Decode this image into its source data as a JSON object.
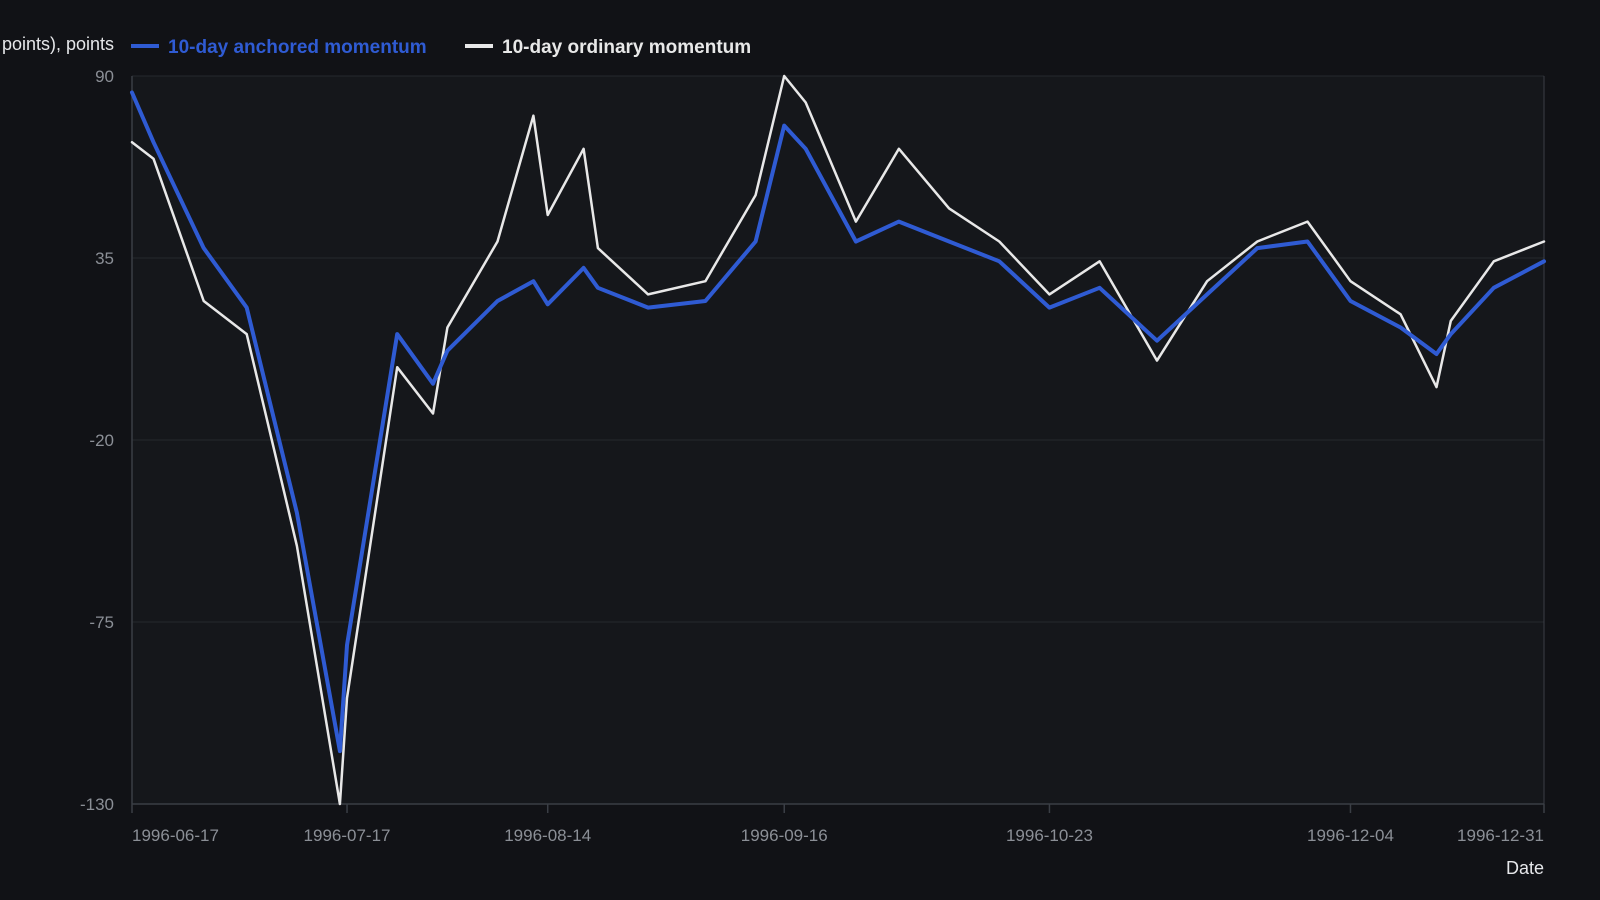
{
  "colors": {
    "background": "#111216",
    "plot_background": "#15171b",
    "grid": "#25282e",
    "axis": "#3a3e45",
    "tick_text": "#8b8f96",
    "label_text": "#e6e7ea",
    "series_anchored": "#2f5bd3",
    "series_ordinary": "#e8e8e8"
  },
  "chart_data": {
    "type": "line",
    "ylabel": "points), points",
    "xlabel": "Date",
    "legend_position": "top-left",
    "grid": true,
    "ylim": [
      -130,
      90
    ],
    "yticks": [
      90,
      35,
      -20,
      -75,
      -130
    ],
    "xlim": [
      "1996-06-17",
      "1996-12-31"
    ],
    "xticks": [
      "1996-06-17",
      "1996-07-17",
      "1996-08-14",
      "1996-09-16",
      "1996-10-23",
      "1996-12-04",
      "1996-12-31"
    ],
    "x": [
      "1996-06-17",
      "1996-06-20",
      "1996-06-27",
      "1996-07-03",
      "1996-07-10",
      "1996-07-16",
      "1996-07-17",
      "1996-07-24",
      "1996-07-29",
      "1996-07-31",
      "1996-08-07",
      "1996-08-12",
      "1996-08-14",
      "1996-08-19",
      "1996-08-21",
      "1996-08-28",
      "1996-09-05",
      "1996-09-12",
      "1996-09-16",
      "1996-09-19",
      "1996-09-26",
      "1996-10-02",
      "1996-10-09",
      "1996-10-16",
      "1996-10-23",
      "1996-10-30",
      "1996-11-07",
      "1996-11-14",
      "1996-11-21",
      "1996-11-28",
      "1996-12-04",
      "1996-12-11",
      "1996-12-16",
      "1996-12-18",
      "1996-12-24",
      "1996-12-31"
    ],
    "series": [
      {
        "name": "10-day anchored momentum",
        "values": [
          85,
          70,
          38,
          20,
          -42,
          -114,
          -82,
          12,
          -3,
          7,
          22,
          28,
          21,
          32,
          26,
          20,
          22,
          40,
          75,
          68,
          40,
          46,
          40,
          34,
          20,
          26,
          10,
          24,
          38,
          40,
          22,
          14,
          6,
          12,
          26,
          34
        ]
      },
      {
        "name": "10-day ordinary momentum",
        "values": [
          70,
          65,
          22,
          12,
          -52,
          -130,
          -98,
          2,
          -12,
          14,
          40,
          78,
          48,
          68,
          38,
          24,
          28,
          54,
          90,
          82,
          46,
          68,
          50,
          40,
          24,
          34,
          4,
          28,
          40,
          46,
          28,
          18,
          -4,
          16,
          34,
          40
        ]
      }
    ]
  }
}
